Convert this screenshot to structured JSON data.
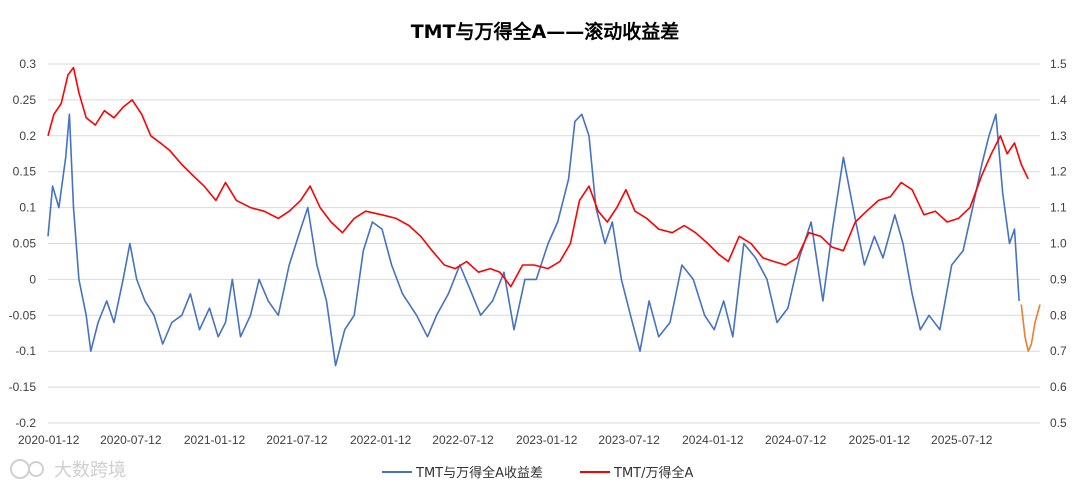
{
  "chart_data": {
    "type": "line",
    "title": "TMT与万得全A——滚动收益差",
    "xlabel": "",
    "ylabel": "",
    "x_range": [
      "2020-01-12",
      "2025-12-31"
    ],
    "x_ticks": [
      "2020-01-12",
      "2020-07-12",
      "2021-01-12",
      "2021-07-12",
      "2022-01-12",
      "2022-07-12",
      "2023-01-12",
      "2023-07-12",
      "2024-01-12",
      "2024-07-12",
      "2025-01-12",
      "2025-07-12"
    ],
    "y_left": {
      "range": [
        -0.2,
        0.3
      ],
      "ticks": [
        "-0.2",
        "-0.15",
        "-0.1",
        "-0.05",
        "0",
        "0.05",
        "0.1",
        "0.15",
        "0.2",
        "0.25",
        "0.3"
      ]
    },
    "y_right": {
      "range": [
        0.5,
        1.5
      ],
      "ticks": [
        "0.5",
        "0.6",
        "0.7",
        "0.8",
        "0.9",
        "1.0",
        "1.1",
        "1.2",
        "1.3",
        "1.4",
        "1.5"
      ]
    },
    "grid": true,
    "legend_position": "bottom",
    "series": [
      {
        "name": "TMT与万得全A收益差",
        "axis": "left",
        "color": "#4472C4",
        "points": [
          [
            "2020-01-12",
            0.06
          ],
          [
            "2020-01-22",
            0.13
          ],
          [
            "2020-02-05",
            0.1
          ],
          [
            "2020-02-20",
            0.17
          ],
          [
            "2020-02-28",
            0.23
          ],
          [
            "2020-03-08",
            0.1
          ],
          [
            "2020-03-20",
            0.0
          ],
          [
            "2020-04-05",
            -0.05
          ],
          [
            "2020-04-15",
            -0.1
          ],
          [
            "2020-05-01",
            -0.06
          ],
          [
            "2020-05-20",
            -0.03
          ],
          [
            "2020-06-05",
            -0.06
          ],
          [
            "2020-06-25",
            0.0
          ],
          [
            "2020-07-10",
            0.05
          ],
          [
            "2020-07-25",
            0.0
          ],
          [
            "2020-08-12",
            -0.03
          ],
          [
            "2020-09-01",
            -0.05
          ],
          [
            "2020-09-20",
            -0.09
          ],
          [
            "2020-10-10",
            -0.06
          ],
          [
            "2020-11-01",
            -0.05
          ],
          [
            "2020-11-20",
            -0.02
          ],
          [
            "2020-12-10",
            -0.07
          ],
          [
            "2021-01-01",
            -0.04
          ],
          [
            "2021-01-20",
            -0.08
          ],
          [
            "2021-02-05",
            -0.06
          ],
          [
            "2021-02-20",
            0.0
          ],
          [
            "2021-03-10",
            -0.08
          ],
          [
            "2021-04-01",
            -0.05
          ],
          [
            "2021-04-20",
            0.0
          ],
          [
            "2021-05-10",
            -0.03
          ],
          [
            "2021-06-01",
            -0.05
          ],
          [
            "2021-06-25",
            0.02
          ],
          [
            "2021-07-20",
            0.07
          ],
          [
            "2021-08-05",
            0.1
          ],
          [
            "2021-08-25",
            0.02
          ],
          [
            "2021-09-15",
            -0.03
          ],
          [
            "2021-10-05",
            -0.12
          ],
          [
            "2021-10-25",
            -0.07
          ],
          [
            "2021-11-15",
            -0.05
          ],
          [
            "2021-12-05",
            0.04
          ],
          [
            "2021-12-25",
            0.08
          ],
          [
            "2022-01-15",
            0.07
          ],
          [
            "2022-02-05",
            0.02
          ],
          [
            "2022-03-01",
            -0.02
          ],
          [
            "2022-04-01",
            -0.05
          ],
          [
            "2022-04-25",
            -0.08
          ],
          [
            "2022-05-15",
            -0.05
          ],
          [
            "2022-06-10",
            -0.02
          ],
          [
            "2022-07-05",
            0.02
          ],
          [
            "2022-07-25",
            -0.01
          ],
          [
            "2022-08-20",
            -0.05
          ],
          [
            "2022-09-15",
            -0.03
          ],
          [
            "2022-10-10",
            0.01
          ],
          [
            "2022-11-01",
            -0.07
          ],
          [
            "2022-11-25",
            0.0
          ],
          [
            "2022-12-20",
            0.0
          ],
          [
            "2023-01-15",
            0.05
          ],
          [
            "2023-02-05",
            0.08
          ],
          [
            "2023-03-01",
            0.14
          ],
          [
            "2023-03-15",
            0.22
          ],
          [
            "2023-03-30",
            0.23
          ],
          [
            "2023-04-15",
            0.2
          ],
          [
            "2023-04-30",
            0.1
          ],
          [
            "2023-05-20",
            0.05
          ],
          [
            "2023-06-05",
            0.08
          ],
          [
            "2023-06-25",
            0.0
          ],
          [
            "2023-07-15",
            -0.05
          ],
          [
            "2023-08-05",
            -0.1
          ],
          [
            "2023-08-25",
            -0.03
          ],
          [
            "2023-09-15",
            -0.08
          ],
          [
            "2023-10-10",
            -0.06
          ],
          [
            "2023-11-05",
            0.02
          ],
          [
            "2023-11-30",
            0.0
          ],
          [
            "2023-12-25",
            -0.05
          ],
          [
            "2024-01-15",
            -0.07
          ],
          [
            "2024-02-05",
            -0.03
          ],
          [
            "2024-02-25",
            -0.08
          ],
          [
            "2024-03-20",
            0.05
          ],
          [
            "2024-04-15",
            0.03
          ],
          [
            "2024-05-10",
            0.0
          ],
          [
            "2024-06-01",
            -0.06
          ],
          [
            "2024-06-25",
            -0.04
          ],
          [
            "2024-07-20",
            0.03
          ],
          [
            "2024-08-15",
            0.08
          ],
          [
            "2024-09-10",
            -0.03
          ],
          [
            "2024-10-01",
            0.07
          ],
          [
            "2024-10-25",
            0.17
          ],
          [
            "2024-11-15",
            0.1
          ],
          [
            "2024-12-10",
            0.02
          ],
          [
            "2025-01-01",
            0.06
          ],
          [
            "2025-01-20",
            0.03
          ],
          [
            "2025-02-15",
            0.09
          ],
          [
            "2025-03-05",
            0.05
          ],
          [
            "2025-03-25",
            -0.02
          ],
          [
            "2025-04-12",
            -0.07
          ],
          [
            "2025-05-01",
            -0.05
          ],
          [
            "2025-05-25",
            -0.07
          ],
          [
            "2025-06-20",
            0.02
          ],
          [
            "2025-07-15",
            0.04
          ],
          [
            "2025-08-05",
            0.1
          ],
          [
            "2025-08-25",
            0.16
          ],
          [
            "2025-09-10",
            0.2
          ],
          [
            "2025-09-25",
            0.23
          ],
          [
            "2025-10-10",
            0.12
          ],
          [
            "2025-10-25",
            0.05
          ],
          [
            "2025-11-05",
            0.07
          ],
          [
            "2025-11-15",
            -0.03
          ]
        ]
      },
      {
        "name": "TMT/万得全A",
        "axis": "right",
        "color": "#FF0000",
        "points": [
          [
            "2020-01-12",
            1.3
          ],
          [
            "2020-01-25",
            1.36
          ],
          [
            "2020-02-10",
            1.39
          ],
          [
            "2020-02-25",
            1.47
          ],
          [
            "2020-03-08",
            1.49
          ],
          [
            "2020-03-20",
            1.42
          ],
          [
            "2020-04-05",
            1.35
          ],
          [
            "2020-04-25",
            1.33
          ],
          [
            "2020-05-15",
            1.37
          ],
          [
            "2020-06-05",
            1.35
          ],
          [
            "2020-06-25",
            1.38
          ],
          [
            "2020-07-15",
            1.4
          ],
          [
            "2020-08-05",
            1.36
          ],
          [
            "2020-08-25",
            1.3
          ],
          [
            "2020-09-15",
            1.28
          ],
          [
            "2020-10-05",
            1.26
          ],
          [
            "2020-11-01",
            1.22
          ],
          [
            "2020-11-25",
            1.19
          ],
          [
            "2020-12-20",
            1.16
          ],
          [
            "2021-01-15",
            1.12
          ],
          [
            "2021-02-05",
            1.17
          ],
          [
            "2021-03-01",
            1.12
          ],
          [
            "2021-04-01",
            1.1
          ],
          [
            "2021-05-01",
            1.09
          ],
          [
            "2021-06-01",
            1.07
          ],
          [
            "2021-06-25",
            1.09
          ],
          [
            "2021-07-20",
            1.12
          ],
          [
            "2021-08-10",
            1.16
          ],
          [
            "2021-09-01",
            1.1
          ],
          [
            "2021-09-25",
            1.06
          ],
          [
            "2021-10-20",
            1.03
          ],
          [
            "2021-11-15",
            1.07
          ],
          [
            "2021-12-10",
            1.09
          ],
          [
            "2022-01-15",
            1.08
          ],
          [
            "2022-02-15",
            1.07
          ],
          [
            "2022-03-15",
            1.05
          ],
          [
            "2022-04-10",
            1.02
          ],
          [
            "2022-05-05",
            0.98
          ],
          [
            "2022-06-01",
            0.94
          ],
          [
            "2022-06-25",
            0.93
          ],
          [
            "2022-07-20",
            0.95
          ],
          [
            "2022-08-15",
            0.92
          ],
          [
            "2022-09-10",
            0.93
          ],
          [
            "2022-10-01",
            0.92
          ],
          [
            "2022-10-25",
            0.88
          ],
          [
            "2022-11-20",
            0.94
          ],
          [
            "2022-12-15",
            0.94
          ],
          [
            "2023-01-15",
            0.93
          ],
          [
            "2023-02-10",
            0.95
          ],
          [
            "2023-03-05",
            1.0
          ],
          [
            "2023-03-25",
            1.12
          ],
          [
            "2023-04-15",
            1.16
          ],
          [
            "2023-05-05",
            1.09
          ],
          [
            "2023-05-25",
            1.06
          ],
          [
            "2023-06-15",
            1.1
          ],
          [
            "2023-07-05",
            1.15
          ],
          [
            "2023-07-25",
            1.09
          ],
          [
            "2023-08-20",
            1.07
          ],
          [
            "2023-09-15",
            1.04
          ],
          [
            "2023-10-15",
            1.03
          ],
          [
            "2023-11-10",
            1.05
          ],
          [
            "2023-12-05",
            1.03
          ],
          [
            "2024-01-01",
            1.0
          ],
          [
            "2024-01-25",
            0.97
          ],
          [
            "2024-02-15",
            0.95
          ],
          [
            "2024-03-10",
            1.02
          ],
          [
            "2024-04-05",
            1.0
          ],
          [
            "2024-05-01",
            0.96
          ],
          [
            "2024-05-25",
            0.95
          ],
          [
            "2024-06-20",
            0.94
          ],
          [
            "2024-07-15",
            0.96
          ],
          [
            "2024-08-10",
            1.03
          ],
          [
            "2024-09-05",
            1.02
          ],
          [
            "2024-09-30",
            0.99
          ],
          [
            "2024-10-25",
            0.98
          ],
          [
            "2024-11-20",
            1.06
          ],
          [
            "2024-12-15",
            1.09
          ],
          [
            "2025-01-10",
            1.12
          ],
          [
            "2025-02-05",
            1.13
          ],
          [
            "2025-03-01",
            1.17
          ],
          [
            "2025-03-25",
            1.15
          ],
          [
            "2025-04-20",
            1.08
          ],
          [
            "2025-05-15",
            1.09
          ],
          [
            "2025-06-10",
            1.06
          ],
          [
            "2025-07-05",
            1.07
          ],
          [
            "2025-07-30",
            1.1
          ],
          [
            "2025-08-25",
            1.19
          ],
          [
            "2025-09-15",
            1.25
          ],
          [
            "2025-10-05",
            1.3
          ],
          [
            "2025-10-20",
            1.25
          ],
          [
            "2025-11-05",
            1.28
          ],
          [
            "2025-11-20",
            1.22
          ],
          [
            "2025-12-05",
            1.18
          ]
        ]
      },
      {
        "axis": "left",
        "color": "#ED7D31",
        "points": [
          [
            "2025-11-20",
            -0.035
          ],
          [
            "2025-11-28",
            -0.08
          ],
          [
            "2025-12-05",
            -0.1
          ],
          [
            "2025-12-12",
            -0.09
          ],
          [
            "2025-12-20",
            -0.06
          ],
          [
            "2025-12-31",
            -0.035
          ]
        ]
      }
    ]
  },
  "legend": [
    {
      "label": "TMT与万得全A收益差",
      "color": "#4472C4"
    },
    {
      "label": "TMT/万得全A",
      "color": "#FF0000"
    }
  ],
  "watermark": {
    "text": "大数跨境"
  }
}
